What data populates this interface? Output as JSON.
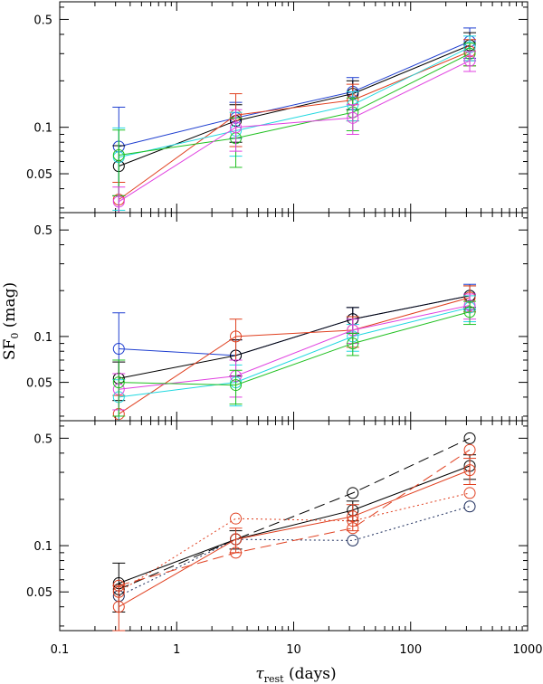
{
  "chart_data": {
    "type": "line",
    "xscale": "log",
    "yscale": "log",
    "xlim": [
      0.1,
      1000
    ],
    "xlabel": "τrest (days)",
    "xlabel_symbol": "τ",
    "xlabel_sub": "rest",
    "xlabel_unit": " (days)",
    "ylabel": "SF0 (mag)",
    "ylabel_main": "SF",
    "ylabel_sub": "0",
    "ylabel_unit": " (mag)",
    "x_ticks": [
      0.1,
      1,
      10,
      100,
      1000
    ],
    "x_tick_labels": [
      "0.1",
      "1",
      "10",
      "100",
      "1000"
    ],
    "panels": [
      {
        "ylim": [
          0.028,
          0.65
        ],
        "y_ticks": [
          0.05,
          0.1,
          0.5
        ],
        "y_tick_labels": [
          "0.05",
          "0.1",
          "0.5"
        ],
        "series": [
          {
            "name": "blue",
            "color": "#1f3fd0",
            "dash": "",
            "x": [
              0.32,
              3.2,
              32,
              320
            ],
            "y": [
              0.075,
              0.115,
              0.17,
              0.36
            ],
            "err": [
              0.06,
              0.03,
              0.04,
              0.08
            ]
          },
          {
            "name": "black",
            "color": "#000000",
            "dash": "",
            "x": [
              0.32,
              3.2,
              32,
              320
            ],
            "y": [
              0.056,
              0.11,
              0.165,
              0.34
            ],
            "err": [
              0.02,
              0.03,
              0.035,
              0.07
            ]
          },
          {
            "name": "red",
            "color": "#e04020",
            "dash": "",
            "x": [
              0.32,
              3.2,
              32,
              320
            ],
            "y": [
              0.034,
              0.12,
              0.15,
              0.31
            ],
            "err": [
              0.01,
              0.045,
              0.04,
              0.06
            ]
          },
          {
            "name": "cyan",
            "color": "#20d8e0",
            "dash": "",
            "x": [
              0.32,
              3.2,
              32,
              320
            ],
            "y": [
              0.064,
              0.095,
              0.14,
              0.33
            ],
            "err": [
              0.035,
              0.03,
              0.03,
              0.06
            ]
          },
          {
            "name": "green",
            "color": "#20c020",
            "dash": "",
            "x": [
              0.32,
              3.2,
              32,
              320
            ],
            "y": [
              0.066,
              0.085,
              0.125,
              0.3
            ],
            "err": [
              0.03,
              0.03,
              0.03,
              0.05
            ]
          },
          {
            "name": "magenta",
            "color": "#e040e0",
            "dash": "",
            "x": [
              0.32,
              3.2,
              32,
              320
            ],
            "y": [
              0.033,
              0.1,
              0.115,
              0.27
            ],
            "err": [
              0.008,
              0.03,
              0.025,
              0.04
            ]
          }
        ]
      },
      {
        "ylim": [
          0.028,
          0.65
        ],
        "y_ticks": [
          0.05,
          0.1,
          0.5
        ],
        "y_tick_labels": [
          "0.05",
          "0.1",
          "0.5"
        ],
        "series": [
          {
            "name": "blue",
            "color": "#1f3fd0",
            "dash": "",
            "x": [
              0.32,
              3.2,
              32,
              320
            ],
            "y": [
              0.083,
              0.075,
              0.13,
              0.185
            ],
            "err": [
              0.06,
              0.02,
              0.025,
              0.035
            ]
          },
          {
            "name": "black",
            "color": "#000000",
            "dash": "",
            "x": [
              0.32,
              3.2,
              32,
              320
            ],
            "y": [
              0.053,
              0.075,
              0.13,
              0.185
            ],
            "err": [
              0.015,
              0.02,
              0.025,
              0.03
            ]
          },
          {
            "name": "red",
            "color": "#e04020",
            "dash": "",
            "x": [
              0.32,
              3.2,
              32,
              320
            ],
            "y": [
              0.031,
              0.1,
              0.11,
              0.18
            ],
            "err": [
              0.01,
              0.03,
              0.025,
              0.035
            ]
          },
          {
            "name": "cyan",
            "color": "#20d8e0",
            "dash": "",
            "x": [
              0.32,
              3.2,
              32,
              320
            ],
            "y": [
              0.04,
              0.05,
              0.1,
              0.155
            ],
            "err": [
              0.012,
              0.015,
              0.02,
              0.03
            ]
          },
          {
            "name": "magenta",
            "color": "#e040e0",
            "dash": "",
            "x": [
              0.32,
              3.2,
              32,
              320
            ],
            "y": [
              0.045,
              0.055,
              0.11,
              0.16
            ],
            "err": [
              0.012,
              0.015,
              0.02,
              0.03
            ]
          },
          {
            "name": "green",
            "color": "#20c020",
            "dash": "",
            "x": [
              0.32,
              3.2,
              32,
              320
            ],
            "y": [
              0.05,
              0.048,
              0.09,
              0.145
            ],
            "err": [
              0.02,
              0.012,
              0.015,
              0.025
            ]
          }
        ]
      },
      {
        "ylim": [
          0.028,
          0.65
        ],
        "y_ticks": [
          0.05,
          0.1,
          0.5
        ],
        "y_tick_labels": [
          "0.05",
          "0.1",
          "0.5"
        ],
        "series": [
          {
            "name": "black-solid",
            "color": "#000000",
            "dash": "",
            "x": [
              0.32,
              3.2,
              32,
              320
            ],
            "y": [
              0.057,
              0.11,
              0.17,
              0.33
            ],
            "err": [
              0.02,
              0.015,
              0.025,
              0.06
            ]
          },
          {
            "name": "black-dashed",
            "color": "#000000",
            "dash": "12,6",
            "x": [
              0.32,
              3.2,
              32,
              320
            ],
            "y": [
              0.052,
              0.11,
              0.22,
              0.5
            ],
            "err": [
              0,
              0,
              0,
              0
            ]
          },
          {
            "name": "black-dotted",
            "color": "#1a2a5a",
            "dash": "2,3",
            "x": [
              0.32,
              3.2,
              32,
              320
            ],
            "y": [
              0.047,
              0.11,
              0.108,
              0.18
            ],
            "err": [
              0,
              0,
              0,
              0
            ]
          },
          {
            "name": "red-solid",
            "color": "#e04020",
            "dash": "",
            "x": [
              0.32,
              3.2,
              32,
              320
            ],
            "y": [
              0.04,
              0.11,
              0.155,
              0.31
            ],
            "err": [
              0.015,
              0.02,
              0.03,
              0.06
            ]
          },
          {
            "name": "red-dashed",
            "color": "#e04020",
            "dash": "12,6",
            "x": [
              0.32,
              3.2,
              32,
              320
            ],
            "y": [
              0.055,
              0.09,
              0.13,
              0.42
            ],
            "err": [
              0,
              0,
              0,
              0
            ]
          },
          {
            "name": "red-dotted",
            "color": "#e04020",
            "dash": "2,3",
            "x": [
              0.32,
              3.2,
              32,
              320
            ],
            "y": [
              0.05,
              0.15,
              0.145,
              0.22
            ],
            "err": [
              0,
              0,
              0,
              0
            ]
          }
        ]
      }
    ]
  }
}
